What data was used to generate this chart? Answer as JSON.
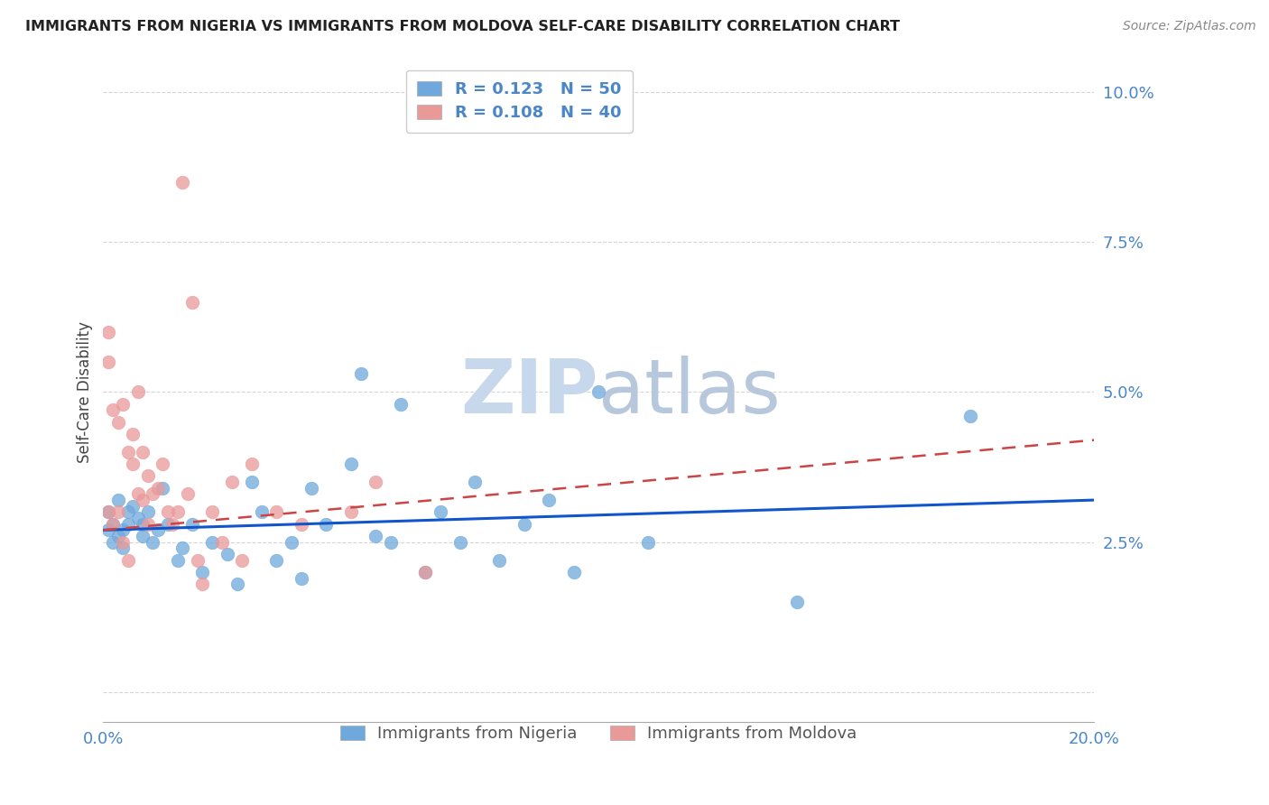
{
  "title": "IMMIGRANTS FROM NIGERIA VS IMMIGRANTS FROM MOLDOVA SELF-CARE DISABILITY CORRELATION CHART",
  "source": "Source: ZipAtlas.com",
  "ylabel": "Self-Care Disability",
  "yticks": [
    0.0,
    0.025,
    0.05,
    0.075,
    0.1
  ],
  "ytick_labels": [
    "",
    "2.5%",
    "5.0%",
    "7.5%",
    "10.0%"
  ],
  "xlim": [
    0.0,
    0.2
  ],
  "ylim": [
    -0.005,
    0.105
  ],
  "legend_nigeria_R": "0.123",
  "legend_nigeria_N": "50",
  "legend_moldova_R": "0.108",
  "legend_moldova_N": "40",
  "nigeria_color": "#6fa8dc",
  "moldova_color": "#ea9999",
  "nigeria_line_color": "#1155cc",
  "moldova_line_color": "#cc4444",
  "nigeria_line_start_y": 0.027,
  "nigeria_line_end_y": 0.032,
  "moldova_line_start_y": 0.027,
  "moldova_line_end_y": 0.042,
  "nigeria_points_x": [
    0.001,
    0.001,
    0.002,
    0.002,
    0.003,
    0.003,
    0.004,
    0.004,
    0.005,
    0.005,
    0.006,
    0.007,
    0.008,
    0.008,
    0.009,
    0.01,
    0.011,
    0.012,
    0.013,
    0.015,
    0.016,
    0.018,
    0.02,
    0.022,
    0.025,
    0.027,
    0.03,
    0.032,
    0.035,
    0.038,
    0.04,
    0.042,
    0.045,
    0.05,
    0.052,
    0.055,
    0.058,
    0.06,
    0.065,
    0.068,
    0.072,
    0.075,
    0.08,
    0.085,
    0.09,
    0.095,
    0.1,
    0.11,
    0.14,
    0.175
  ],
  "nigeria_points_y": [
    0.03,
    0.027,
    0.028,
    0.025,
    0.032,
    0.026,
    0.027,
    0.024,
    0.03,
    0.028,
    0.031,
    0.029,
    0.026,
    0.028,
    0.03,
    0.025,
    0.027,
    0.034,
    0.028,
    0.022,
    0.024,
    0.028,
    0.02,
    0.025,
    0.023,
    0.018,
    0.035,
    0.03,
    0.022,
    0.025,
    0.019,
    0.034,
    0.028,
    0.038,
    0.053,
    0.026,
    0.025,
    0.048,
    0.02,
    0.03,
    0.025,
    0.035,
    0.022,
    0.028,
    0.032,
    0.02,
    0.05,
    0.025,
    0.015,
    0.046
  ],
  "moldova_points_x": [
    0.001,
    0.001,
    0.001,
    0.002,
    0.002,
    0.003,
    0.003,
    0.004,
    0.004,
    0.005,
    0.005,
    0.006,
    0.006,
    0.007,
    0.007,
    0.008,
    0.008,
    0.009,
    0.009,
    0.01,
    0.011,
    0.012,
    0.013,
    0.014,
    0.015,
    0.016,
    0.017,
    0.018,
    0.019,
    0.02,
    0.022,
    0.024,
    0.026,
    0.028,
    0.03,
    0.035,
    0.04,
    0.05,
    0.055,
    0.065
  ],
  "moldova_points_y": [
    0.06,
    0.055,
    0.03,
    0.047,
    0.028,
    0.045,
    0.03,
    0.048,
    0.025,
    0.04,
    0.022,
    0.043,
    0.038,
    0.05,
    0.033,
    0.04,
    0.032,
    0.036,
    0.028,
    0.033,
    0.034,
    0.038,
    0.03,
    0.028,
    0.03,
    0.085,
    0.033,
    0.065,
    0.022,
    0.018,
    0.03,
    0.025,
    0.035,
    0.022,
    0.038,
    0.03,
    0.028,
    0.03,
    0.035,
    0.02
  ],
  "background_color": "#ffffff",
  "grid_color": "#cccccc",
  "axis_label_color": "#4a86c8",
  "title_color": "#222222",
  "watermark_color": "#c8d8ec",
  "watermark_fontsize": 60
}
